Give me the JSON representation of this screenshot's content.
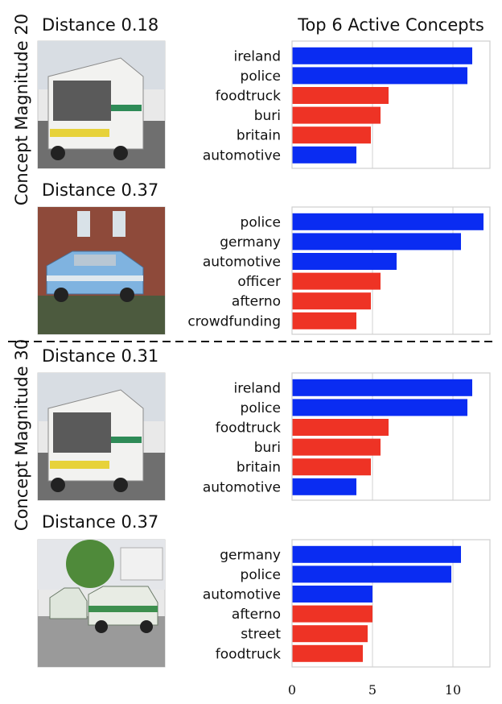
{
  "title": "Top 6 Active Concepts",
  "groups": [
    {
      "label": "Concept Magnitude 20"
    },
    {
      "label": "Concept Magnitude 30"
    }
  ],
  "colors": {
    "positive": "#0a2cf2",
    "negative": "#ee3325",
    "grid": "#d8d8d8",
    "frame": "#cfcfcf"
  },
  "chart_data": [
    {
      "type": "bar",
      "orientation": "horizontal",
      "image_title": "Distance 0.18",
      "categories": [
        "ireland",
        "police",
        "foodtruck",
        "buri",
        "britain",
        "automotive"
      ],
      "values": [
        11.2,
        10.9,
        6.0,
        5.5,
        4.9,
        4.0
      ],
      "colors": [
        "positive",
        "positive",
        "negative",
        "negative",
        "negative",
        "positive"
      ],
      "xlim": [
        0,
        12.3
      ]
    },
    {
      "type": "bar",
      "orientation": "horizontal",
      "image_title": "Distance 0.37",
      "categories": [
        "police",
        "germany",
        "automotive",
        "officer",
        "afterno",
        "crowdfunding"
      ],
      "values": [
        11.9,
        10.5,
        6.5,
        5.5,
        4.9,
        4.0
      ],
      "colors": [
        "positive",
        "positive",
        "positive",
        "negative",
        "negative",
        "negative"
      ],
      "xlim": [
        0,
        12.3
      ]
    },
    {
      "type": "bar",
      "orientation": "horizontal",
      "image_title": "Distance 0.31",
      "categories": [
        "ireland",
        "police",
        "foodtruck",
        "buri",
        "britain",
        "automotive"
      ],
      "values": [
        11.2,
        10.9,
        6.0,
        5.5,
        4.9,
        4.0
      ],
      "colors": [
        "positive",
        "positive",
        "negative",
        "negative",
        "negative",
        "positive"
      ],
      "xlim": [
        0,
        12.3
      ]
    },
    {
      "type": "bar",
      "orientation": "horizontal",
      "image_title": "Distance 0.37",
      "categories": [
        "germany",
        "police",
        "automotive",
        "afterno",
        "street",
        "foodtruck"
      ],
      "values": [
        10.5,
        9.9,
        5.0,
        5.0,
        4.7,
        4.4
      ],
      "colors": [
        "positive",
        "positive",
        "positive",
        "negative",
        "negative",
        "negative"
      ],
      "xlim": [
        0,
        12.3
      ],
      "xticks": [
        0,
        5,
        10
      ]
    }
  ]
}
